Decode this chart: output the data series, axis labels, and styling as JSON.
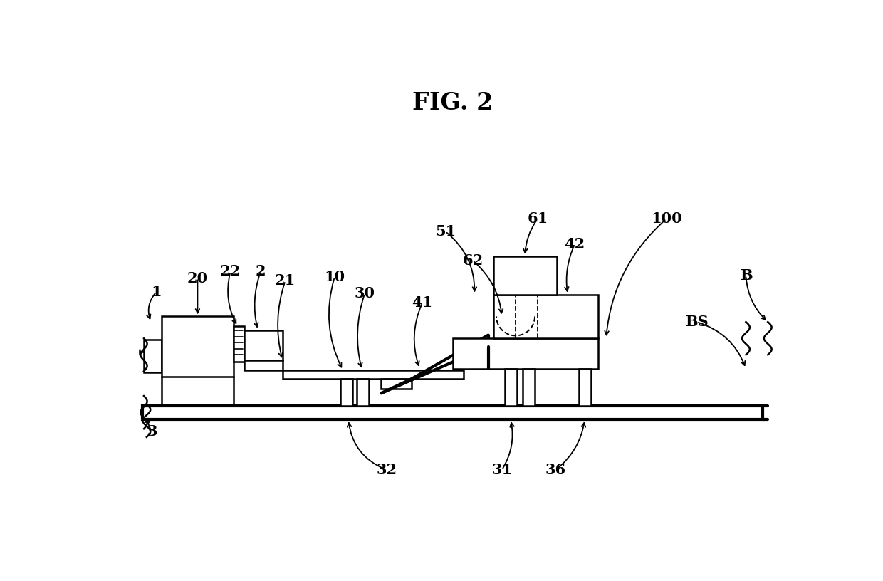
{
  "title": "FIG. 2",
  "bg_color": "#ffffff",
  "lw": 1.8,
  "lw_thick": 3.0,
  "fs": 15
}
